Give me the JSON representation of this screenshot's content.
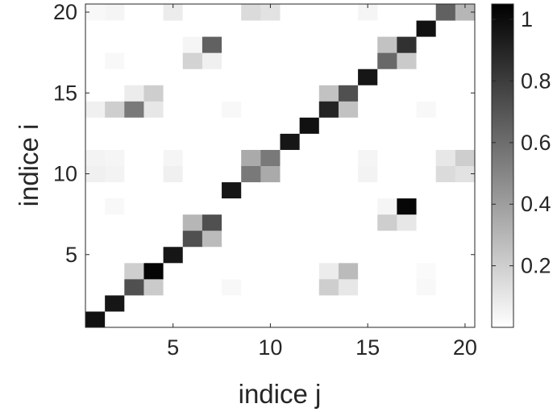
{
  "chart_data": {
    "type": "heatmap",
    "title": "",
    "xlabel": "indice j",
    "ylabel": "indice i",
    "x_range": [
      1,
      20
    ],
    "y_range": [
      1,
      20
    ],
    "y_direction": "normal",
    "x_ticks": [
      5,
      10,
      15,
      20
    ],
    "y_ticks": [
      5,
      10,
      15,
      20
    ],
    "colormap": "gray (white = 0, black = max)",
    "colorbar": {
      "location": "right",
      "range": [
        0,
        1.05
      ],
      "ticks": [
        0.2,
        0.4,
        0.6,
        0.8,
        1
      ],
      "tick_labels": [
        "0.2",
        "0.4",
        "0.6",
        "0.8",
        "1"
      ]
    },
    "grid": false,
    "matrix_rows_i_1_to_20": [
      [
        0.98,
        0,
        0,
        0,
        0,
        0,
        0,
        0,
        0,
        0,
        0,
        0,
        0,
        0,
        0,
        0,
        0,
        0,
        0,
        0
      ],
      [
        0,
        0.96,
        0,
        0,
        0,
        0,
        0,
        0,
        0,
        0,
        0,
        0,
        0,
        0,
        0,
        0,
        0,
        0,
        0,
        0
      ],
      [
        0,
        0,
        0.72,
        0.22,
        0,
        0,
        0,
        0.03,
        0,
        0,
        0,
        0,
        0.2,
        0.1,
        0,
        0,
        0,
        0.03,
        0,
        0
      ],
      [
        0,
        0,
        0.2,
        1.03,
        0,
        0,
        0,
        0,
        0,
        0,
        0,
        0,
        0.08,
        0.28,
        0,
        0,
        0,
        0.02,
        0,
        0
      ],
      [
        0,
        0,
        0,
        0,
        0.96,
        0,
        0,
        0,
        0,
        0,
        0,
        0,
        0,
        0,
        0,
        0,
        0,
        0,
        0,
        0
      ],
      [
        0,
        0,
        0,
        0,
        0,
        0.72,
        0.28,
        0,
        0,
        0,
        0,
        0,
        0,
        0,
        0,
        0,
        0,
        0,
        0,
        0
      ],
      [
        0,
        0,
        0,
        0,
        0,
        0.3,
        0.72,
        0,
        0,
        0,
        0,
        0,
        0,
        0,
        0,
        0.2,
        0.1,
        0,
        0,
        0
      ],
      [
        0,
        0.03,
        0,
        0,
        0,
        0,
        0,
        0,
        0,
        0,
        0,
        0,
        0,
        0,
        0,
        0.04,
        1.02,
        0,
        0,
        0
      ],
      [
        0,
        0,
        0,
        0,
        0,
        0,
        0,
        0.96,
        0,
        0,
        0,
        0,
        0,
        0,
        0,
        0,
        0,
        0,
        0,
        0
      ],
      [
        0.06,
        0.05,
        0,
        0,
        0.06,
        0,
        0,
        0,
        0.55,
        0.35,
        0,
        0,
        0,
        0,
        0.05,
        0,
        0,
        0,
        0.15,
        0.12
      ],
      [
        0.05,
        0.04,
        0,
        0,
        0.04,
        0,
        0,
        0,
        0.35,
        0.55,
        0,
        0,
        0,
        0,
        0.04,
        0,
        0,
        0,
        0.1,
        0.2
      ],
      [
        0,
        0,
        0,
        0,
        0,
        0,
        0,
        0,
        0,
        0,
        0.96,
        0,
        0,
        0,
        0,
        0,
        0,
        0,
        0,
        0
      ],
      [
        0,
        0,
        0,
        0,
        0,
        0,
        0,
        0,
        0,
        0,
        0,
        0.98,
        0,
        0,
        0,
        0,
        0,
        0,
        0,
        0
      ],
      [
        0.06,
        0.2,
        0.55,
        0.1,
        0,
        0,
        0,
        0.03,
        0,
        0,
        0,
        0,
        0.9,
        0.25,
        0,
        0,
        0,
        0.03,
        0,
        0
      ],
      [
        0,
        0,
        0.08,
        0.2,
        0,
        0,
        0,
        0,
        0,
        0,
        0,
        0,
        0.25,
        0.72,
        0,
        0,
        0,
        0,
        0,
        0
      ],
      [
        0,
        0,
        0,
        0,
        0,
        0,
        0,
        0,
        0,
        0,
        0,
        0,
        0,
        0,
        0.96,
        0,
        0,
        0,
        0,
        0
      ],
      [
        0,
        0.03,
        0,
        0,
        0,
        0.18,
        0.06,
        0,
        0,
        0,
        0,
        0,
        0,
        0,
        0,
        0.62,
        0.22,
        0,
        0,
        0
      ],
      [
        0,
        0,
        0,
        0,
        0,
        0.04,
        0.65,
        0,
        0,
        0,
        0,
        0,
        0,
        0,
        0,
        0.25,
        0.85,
        0,
        0,
        0
      ],
      [
        0,
        0,
        0,
        0,
        0,
        0,
        0,
        0,
        0,
        0,
        0,
        0,
        0,
        0,
        0,
        0,
        0,
        0.98,
        0,
        0
      ],
      [
        0.03,
        0.04,
        0,
        0,
        0.08,
        0,
        0,
        0,
        0.15,
        0.12,
        0,
        0,
        0,
        0,
        0.04,
        0,
        0,
        0,
        0.65,
        0.3
      ]
    ]
  }
}
